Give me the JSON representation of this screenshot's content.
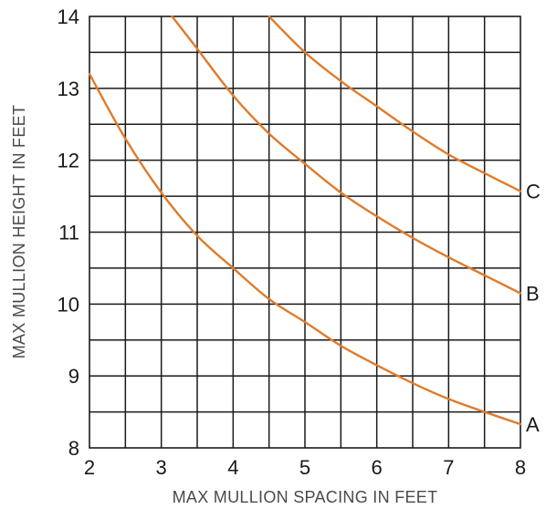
{
  "chart_data": {
    "type": "line",
    "xlabel": "MAX MULLION SPACING IN FEET",
    "ylabel": "MAX MULLION HEIGHT IN FEET",
    "xlim": [
      2,
      8
    ],
    "ylim": [
      8,
      14
    ],
    "x_ticks": [
      "2",
      "3",
      "4",
      "5",
      "6",
      "7",
      "8"
    ],
    "y_ticks": [
      "8",
      "9",
      "10",
      "11",
      "12",
      "13",
      "14"
    ],
    "grid": true,
    "grid_step_x": 0.5,
    "grid_step_y": 0.5,
    "line_color": "#e07b2a",
    "series": [
      {
        "name": "A",
        "x": [
          2,
          2.5,
          3,
          3.5,
          4,
          4.5,
          5,
          5.5,
          6,
          6.5,
          7,
          7.5,
          8
        ],
        "y": [
          13.2,
          12.3,
          11.55,
          10.95,
          10.5,
          10.07,
          9.75,
          9.42,
          9.15,
          8.9,
          8.68,
          8.5,
          8.33
        ]
      },
      {
        "name": "B",
        "x": [
          3.15,
          3.5,
          4,
          4.5,
          5,
          5.5,
          6,
          6.5,
          7,
          7.5,
          8
        ],
        "y": [
          14,
          13.55,
          12.9,
          12.37,
          11.95,
          11.55,
          11.22,
          10.92,
          10.65,
          10.4,
          10.15
        ]
      },
      {
        "name": "C",
        "x": [
          4.5,
          5,
          5.5,
          6,
          6.5,
          7,
          7.5,
          8
        ],
        "y": [
          14,
          13.5,
          13.1,
          12.75,
          12.4,
          12.08,
          11.82,
          11.57
        ]
      }
    ]
  }
}
